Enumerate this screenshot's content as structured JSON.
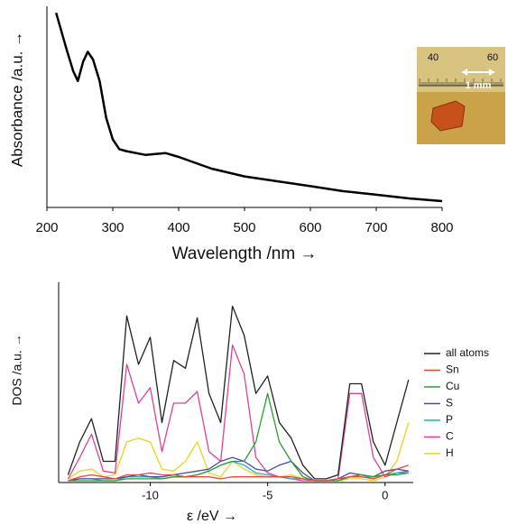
{
  "chart_data": [
    {
      "type": "line",
      "x_label": "Wavelength /nm →",
      "y_label": "Absorbance /a.u. →",
      "x": [
        214,
        230,
        240,
        247,
        255,
        262,
        270,
        280,
        290,
        300,
        310,
        320,
        350,
        380,
        400,
        450,
        500,
        550,
        600,
        650,
        700,
        750,
        800
      ],
      "values": [
        0.99,
        0.8,
        0.69,
        0.64,
        0.74,
        0.79,
        0.75,
        0.64,
        0.45,
        0.34,
        0.29,
        0.28,
        0.26,
        0.27,
        0.25,
        0.19,
        0.15,
        0.125,
        0.1,
        0.074,
        0.056,
        0.037,
        0.023
      ],
      "color": "#000000",
      "xlim": [
        200,
        800
      ],
      "xticks": [
        200,
        300,
        400,
        500,
        600,
        700,
        800
      ],
      "ylim": [
        0,
        1
      ],
      "annotations": [
        "40",
        "60",
        "1 mm"
      ]
    },
    {
      "type": "line",
      "x_label": "ε /eV →",
      "y_label": "DOS /a.u. →",
      "x": [
        -13.5,
        -13,
        -12.5,
        -12,
        -11.5,
        -11,
        -10.5,
        -10,
        -9.5,
        -9,
        -8.5,
        -8,
        -7.5,
        -7,
        -6.5,
        -6,
        -5.5,
        -5,
        -4.5,
        -4,
        -3.5,
        -3,
        -2.5,
        -2,
        -1.5,
        -1,
        -0.5,
        0,
        0.5,
        1
      ],
      "series": [
        {
          "name": "all atoms",
          "color": "#222222",
          "values": [
            0.03,
            0.2,
            0.32,
            0.1,
            0.1,
            0.85,
            0.6,
            0.74,
            0.3,
            0.62,
            0.58,
            0.84,
            0.45,
            0.3,
            0.9,
            0.75,
            0.45,
            0.54,
            0.3,
            0.22,
            0.08,
            0.01,
            0.01,
            0.03,
            0.5,
            0.5,
            0.2,
            0.08,
            0.3,
            0.52
          ]
        },
        {
          "name": "Sn",
          "color": "#e8483b",
          "values": [
            0,
            0.02,
            0.03,
            0.02,
            0.01,
            0.03,
            0.03,
            0.04,
            0.03,
            0.03,
            0.02,
            0.02,
            0.02,
            0.01,
            0.02,
            0.02,
            0.02,
            0.02,
            0.02,
            0.02,
            0.01,
            0,
            0,
            0.01,
            0.02,
            0.02,
            0.01,
            0.03,
            0.06,
            0.08
          ]
        },
        {
          "name": "Cu",
          "color": "#2aa02a",
          "values": [
            0,
            0,
            0,
            0,
            0,
            0.01,
            0.01,
            0.01,
            0.01,
            0.02,
            0.02,
            0.03,
            0.05,
            0.08,
            0.1,
            0.1,
            0.2,
            0.45,
            0.2,
            0.1,
            0.02,
            0,
            0,
            0,
            0.02,
            0.03,
            0.02,
            0.03,
            0.03,
            0.04
          ]
        },
        {
          "name": "S",
          "color": "#4a4aa8",
          "values": [
            0,
            0.01,
            0.01,
            0.01,
            0.01,
            0.02,
            0.03,
            0.02,
            0.02,
            0.03,
            0.04,
            0.05,
            0.06,
            0.1,
            0.12,
            0.1,
            0.06,
            0.05,
            0.08,
            0.1,
            0.04,
            0,
            0,
            0.01,
            0.04,
            0.03,
            0.02,
            0.05,
            0.06,
            0.05
          ]
        },
        {
          "name": "P",
          "color": "#20b0d0",
          "values": [
            0,
            0.01,
            0.01,
            0,
            0,
            0.02,
            0.02,
            0.02,
            0.01,
            0.02,
            0.02,
            0.03,
            0.05,
            0.08,
            0.1,
            0.08,
            0.04,
            0.03,
            0.02,
            0.01,
            0.01,
            0,
            0,
            0,
            0.02,
            0.03,
            0.01,
            0.03,
            0.04,
            0.04
          ]
        },
        {
          "name": "C",
          "color": "#e0409a",
          "values": [
            0.01,
            0.12,
            0.24,
            0.05,
            0.04,
            0.6,
            0.4,
            0.48,
            0.15,
            0.4,
            0.4,
            0.46,
            0.15,
            0.1,
            0.7,
            0.55,
            0.12,
            0.04,
            0.02,
            0.01,
            0,
            0,
            0,
            0.01,
            0.45,
            0.45,
            0.12,
            0.02,
            0.04,
            0.05
          ]
        },
        {
          "name": "H",
          "color": "#f0d020",
          "values": [
            0.01,
            0.05,
            0.06,
            0.02,
            0.03,
            0.2,
            0.22,
            0.2,
            0.06,
            0.05,
            0.1,
            0.2,
            0.04,
            0.02,
            0.1,
            0.06,
            0.03,
            0.02,
            0.02,
            0.03,
            0.01,
            0,
            0,
            0,
            0.01,
            0.01,
            0,
            0.02,
            0.1,
            0.3
          ]
        }
      ],
      "xlim": [
        -13.9,
        1.2
      ],
      "xticks": [
        -10,
        -5,
        0
      ],
      "ylim": [
        0,
        1
      ]
    }
  ]
}
